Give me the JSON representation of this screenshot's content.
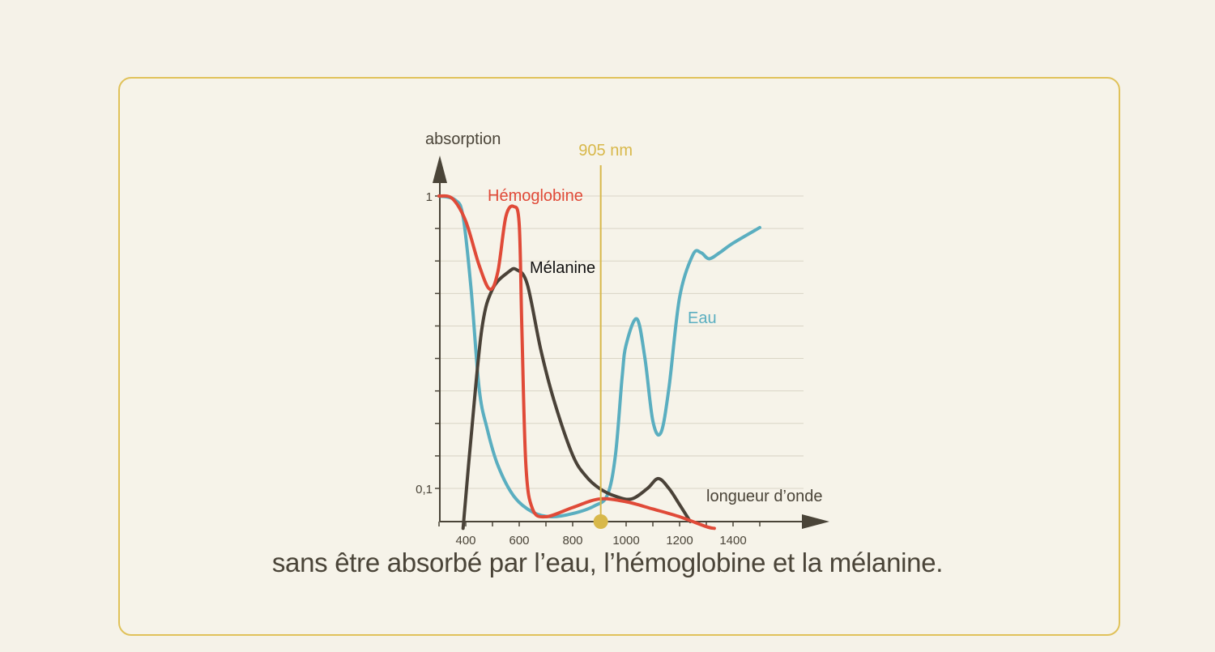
{
  "caption": "sans être absorbé par l’eau, l’hémoglobine et la mélanine.",
  "chart_data": {
    "type": "line",
    "ylabel": "absorption",
    "xlabel": "longueur d’onde",
    "y_scale": "log",
    "ylim": [
      0.075,
      1.0
    ],
    "xlim": [
      300,
      1500
    ],
    "x_ticks": [
      400,
      600,
      800,
      1000,
      1200,
      1400
    ],
    "y_tick_labels": [
      {
        "value": 1,
        "label": "1"
      },
      {
        "value": 0.1,
        "label": "0,1"
      }
    ],
    "marker": {
      "x": 905,
      "label": "905 nm",
      "color": "#d8b84a"
    },
    "series": [
      {
        "name": "Hémoglobine",
        "color": "#e04a38",
        "points": [
          [
            300,
            1.0
          ],
          [
            350,
            0.98
          ],
          [
            400,
            0.82
          ],
          [
            450,
            0.58
          ],
          [
            490,
            0.48
          ],
          [
            520,
            0.55
          ],
          [
            550,
            0.85
          ],
          [
            580,
            0.92
          ],
          [
            600,
            0.8
          ],
          [
            610,
            0.35
          ],
          [
            625,
            0.12
          ],
          [
            650,
            0.085
          ],
          [
            700,
            0.08
          ],
          [
            800,
            0.086
          ],
          [
            900,
            0.092
          ],
          [
            1000,
            0.09
          ],
          [
            1100,
            0.085
          ],
          [
            1200,
            0.08
          ],
          [
            1300,
            0.074
          ],
          [
            1330,
            0.073
          ]
        ]
      },
      {
        "name": "Mélanine",
        "color": "#4a4238",
        "points": [
          [
            390,
            0.073
          ],
          [
            420,
            0.15
          ],
          [
            460,
            0.35
          ],
          [
            500,
            0.48
          ],
          [
            560,
            0.55
          ],
          [
            590,
            0.56
          ],
          [
            630,
            0.5
          ],
          [
            680,
            0.3
          ],
          [
            730,
            0.2
          ],
          [
            800,
            0.13
          ],
          [
            850,
            0.11
          ],
          [
            900,
            0.1
          ],
          [
            960,
            0.094
          ],
          [
            1020,
            0.092
          ],
          [
            1080,
            0.1
          ],
          [
            1120,
            0.108
          ],
          [
            1160,
            0.1
          ],
          [
            1200,
            0.088
          ],
          [
            1240,
            0.077
          ]
        ]
      },
      {
        "name": "Eau",
        "color": "#5aaec0",
        "points": [
          [
            300,
            1.0
          ],
          [
            360,
            0.97
          ],
          [
            390,
            0.85
          ],
          [
            420,
            0.48
          ],
          [
            450,
            0.22
          ],
          [
            480,
            0.16
          ],
          [
            520,
            0.12
          ],
          [
            580,
            0.094
          ],
          [
            650,
            0.083
          ],
          [
            720,
            0.08
          ],
          [
            800,
            0.082
          ],
          [
            880,
            0.087
          ],
          [
            930,
            0.095
          ],
          [
            960,
            0.13
          ],
          [
            985,
            0.24
          ],
          [
            1000,
            0.31
          ],
          [
            1040,
            0.38
          ],
          [
            1070,
            0.28
          ],
          [
            1100,
            0.17
          ],
          [
            1130,
            0.155
          ],
          [
            1160,
            0.22
          ],
          [
            1200,
            0.45
          ],
          [
            1250,
            0.63
          ],
          [
            1280,
            0.64
          ],
          [
            1310,
            0.61
          ],
          [
            1350,
            0.64
          ],
          [
            1400,
            0.69
          ],
          [
            1500,
            0.78
          ]
        ]
      }
    ]
  }
}
